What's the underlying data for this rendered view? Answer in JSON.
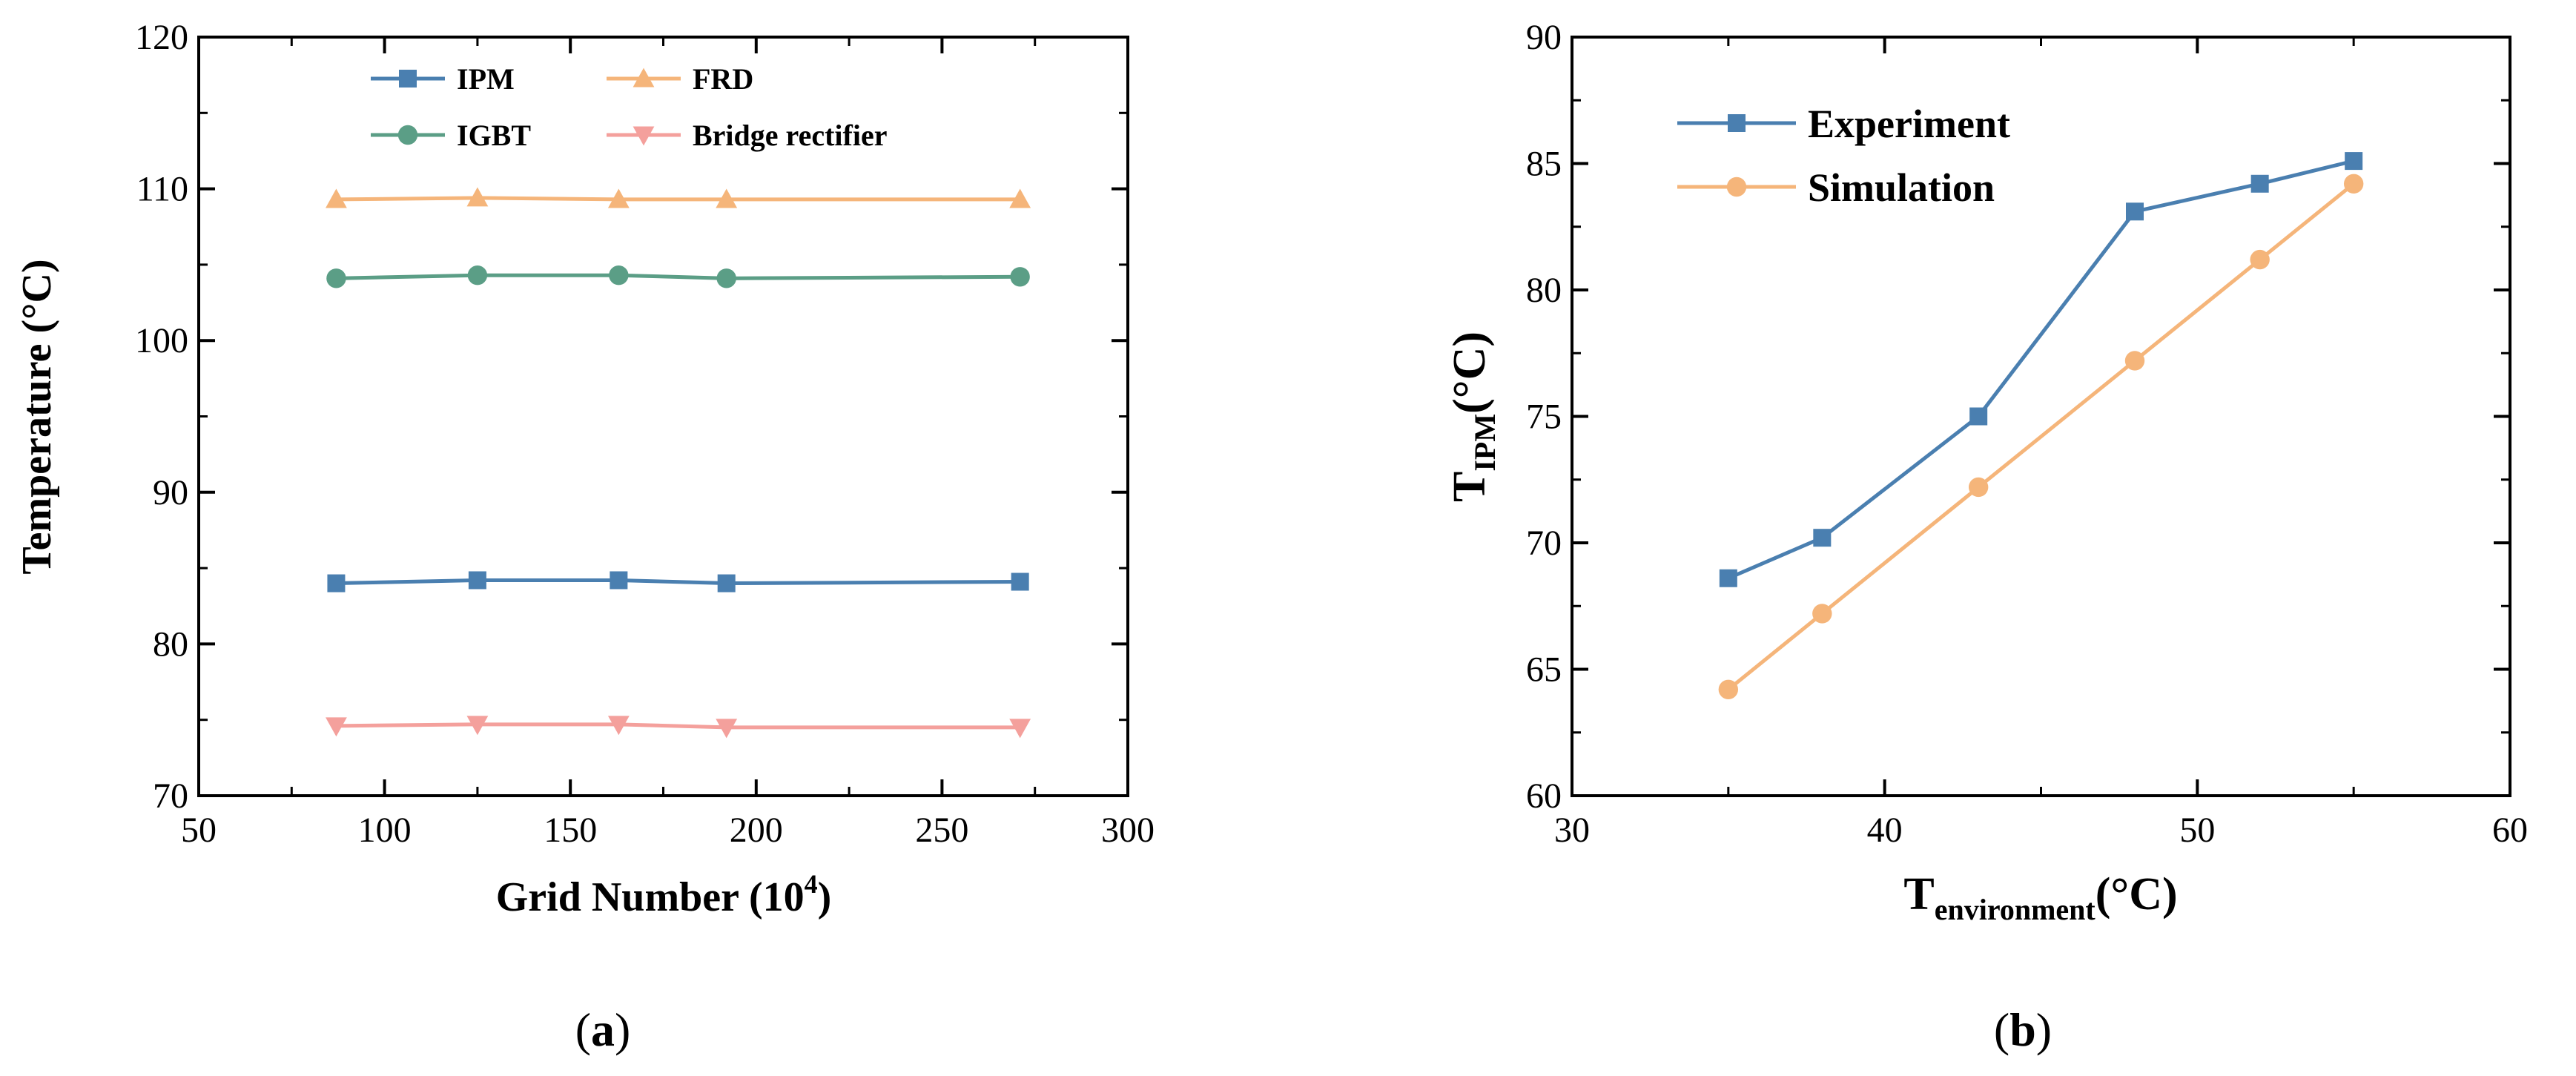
{
  "chart_data": [
    {
      "id": "a",
      "type": "line",
      "caption_open": "(",
      "caption": "a",
      "caption_close": ")",
      "title": "",
      "xlabel": "Grid Number (10",
      "xlabel_sup": "4",
      "xlabel_close": ")",
      "ylabel": "Temperature (°C)",
      "xlim": [
        50,
        300
      ],
      "ylim": [
        70,
        120
      ],
      "xticks": [
        50,
        100,
        150,
        200,
        250,
        300
      ],
      "yticks": [
        70,
        80,
        90,
        100,
        110,
        120
      ],
      "x": [
        87,
        125,
        163,
        192,
        271
      ],
      "legend_position": "top",
      "series": [
        {
          "name": "IPM",
          "marker": "square",
          "color": "#4a7fb0",
          "values": [
            84.0,
            84.2,
            84.2,
            84.0,
            84.1
          ]
        },
        {
          "name": "FRD",
          "marker": "triangle-up",
          "color": "#f5b57a",
          "values": [
            109.3,
            109.4,
            109.3,
            109.3,
            109.3
          ]
        },
        {
          "name": "IGBT",
          "marker": "circle",
          "color": "#5b9e86",
          "values": [
            104.1,
            104.3,
            104.3,
            104.1,
            104.2
          ]
        },
        {
          "name": "Bridge rectifier",
          "marker": "triangle-down",
          "color": "#f4a09c",
          "values": [
            74.6,
            74.7,
            74.7,
            74.5,
            74.5
          ]
        }
      ]
    },
    {
      "id": "b",
      "type": "line",
      "caption_open": "(",
      "caption": "b",
      "caption_close": ")",
      "title": "",
      "xlabel": "T",
      "xlabel_sub": "environment",
      "xlabel_unit": "(°C)",
      "ylabel": "T",
      "ylabel_sub": "IPM",
      "ylabel_unit": "(°C)",
      "xlim": [
        30,
        60
      ],
      "ylim": [
        60,
        90
      ],
      "xticks": [
        30,
        40,
        50,
        60
      ],
      "yticks": [
        60,
        65,
        70,
        75,
        80,
        85,
        90
      ],
      "x": [
        35,
        38,
        43,
        48,
        52,
        55
      ],
      "legend_position": "top-left",
      "series": [
        {
          "name": "Experiment",
          "marker": "square",
          "color": "#4a7fb0",
          "values": [
            68.6,
            70.2,
            75.0,
            83.1,
            84.2,
            85.1
          ]
        },
        {
          "name": "Simulation",
          "marker": "circle",
          "color": "#f5b57a",
          "values": [
            64.2,
            67.2,
            72.2,
            77.2,
            81.2,
            84.2
          ]
        }
      ]
    }
  ]
}
